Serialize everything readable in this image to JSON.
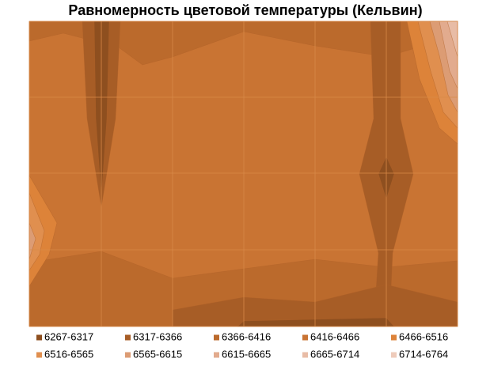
{
  "chart_data": {
    "type": "contour",
    "title": "Равномерность цветовой температуры (Кельвин)",
    "series": [
      {
        "name": "6267-6317",
        "color": "#8e4f1f"
      },
      {
        "name": "6317-6366",
        "color": "#a75d26"
      },
      {
        "name": "6366-6416",
        "color": "#bb6a2c"
      },
      {
        "name": "6416-6466",
        "color": "#c97433"
      },
      {
        "name": "6466-6516",
        "color": "#dd8339"
      },
      {
        "name": "6516-6565",
        "color": "#e08f4f"
      },
      {
        "name": "6565-6615",
        "color": "#dc9c74"
      },
      {
        "name": "6615-6665",
        "color": "#e2ab8e"
      },
      {
        "name": "6665-6714",
        "color": "#e8bca6"
      },
      {
        "name": "6714-6764",
        "color": "#eecbba"
      }
    ]
  }
}
